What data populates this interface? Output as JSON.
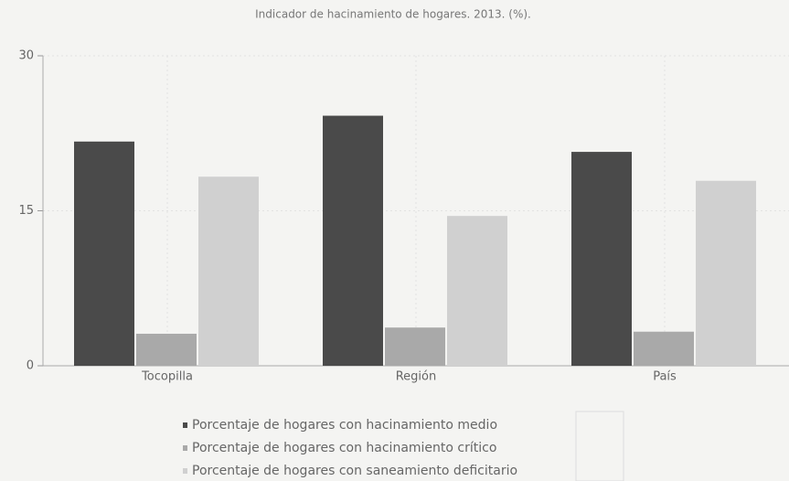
{
  "chart_data": {
    "type": "bar",
    "title": "Indicador de hacinamiento de hogares. 2013. (%).",
    "categories": [
      "Tocopilla",
      "Región",
      "País"
    ],
    "series": [
      {
        "name": "Porcentaje de hogares con hacinamiento medio",
        "color": "#4a4a4a",
        "values": [
          21.7,
          24.2,
          20.7
        ]
      },
      {
        "name": "Porcentaje de hogares con hacinamiento crítico",
        "color": "#a9a9a9",
        "values": [
          3.1,
          3.7,
          3.3
        ]
      },
      {
        "name": "Porcentaje de hogares con saneamiento deficitario",
        "color": "#d0d0d0",
        "values": [
          18.3,
          14.5,
          17.9
        ]
      }
    ],
    "ylim": [
      0,
      30
    ],
    "yticks": [
      0,
      15,
      30
    ],
    "grid": true
  }
}
